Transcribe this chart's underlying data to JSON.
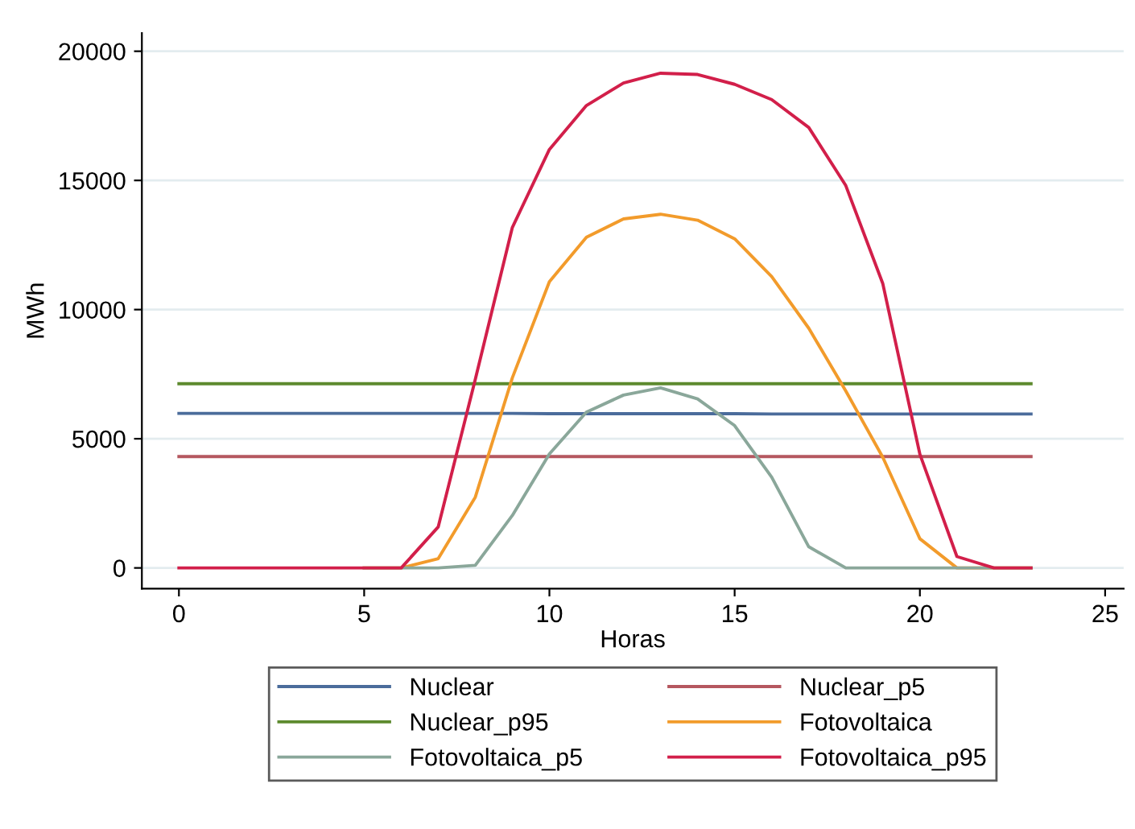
{
  "chart_data": {
    "type": "line",
    "xlabel": "Horas",
    "ylabel": "MWh",
    "x": [
      0,
      1,
      2,
      3,
      4,
      5,
      6,
      7,
      8,
      9,
      10,
      11,
      12,
      13,
      14,
      15,
      16,
      17,
      18,
      19,
      20,
      21,
      22,
      23
    ],
    "series": [
      {
        "name": "Nuclear",
        "color": "#4b6c9b",
        "values": [
          5980,
          5980,
          5980,
          5980,
          5980,
          5980,
          5980,
          5980,
          5980,
          5980,
          5970,
          5970,
          5970,
          5970,
          5970,
          5970,
          5960,
          5960,
          5960,
          5960,
          5960,
          5960,
          5960,
          5960
        ]
      },
      {
        "name": "Nuclear_p5",
        "color": "#b5575f",
        "values": [
          4310,
          4310,
          4310,
          4310,
          4310,
          4310,
          4310,
          4310,
          4310,
          4310,
          4310,
          4310,
          4310,
          4310,
          4310,
          4310,
          4310,
          4310,
          4310,
          4310,
          4310,
          4310,
          4310,
          4310
        ]
      },
      {
        "name": "Nuclear_p95",
        "color": "#5d8a2e",
        "values": [
          7130,
          7130,
          7130,
          7130,
          7130,
          7130,
          7130,
          7130,
          7130,
          7130,
          7130,
          7130,
          7130,
          7130,
          7130,
          7130,
          7130,
          7130,
          7130,
          7130,
          7130,
          7130,
          7130,
          7130
        ]
      },
      {
        "name": "Fotovoltaica",
        "color": "#f29b2b",
        "values": [
          null,
          null,
          null,
          null,
          null,
          0,
          0,
          360,
          2740,
          7360,
          11080,
          12800,
          13510,
          13690,
          13460,
          12740,
          11280,
          9280,
          6850,
          4280,
          1130,
          0,
          0,
          0
        ]
      },
      {
        "name": "Fotovoltaica_p5",
        "color": "#8aa79a",
        "values": [
          null,
          null,
          null,
          null,
          null,
          0,
          0,
          0,
          100,
          2030,
          4410,
          6030,
          6690,
          6970,
          6540,
          5510,
          3510,
          820,
          0,
          0,
          0,
          0,
          0,
          0
        ]
      },
      {
        "name": "Fotovoltaica_p95",
        "color": "#d21f4a",
        "values": [
          0,
          0,
          0,
          0,
          0,
          0,
          0,
          1590,
          7300,
          13180,
          16200,
          17900,
          18770,
          19150,
          19100,
          18720,
          18130,
          17050,
          14800,
          11000,
          4400,
          440,
          0,
          0
        ]
      }
    ],
    "xlim": [
      -1,
      25.5
    ],
    "xticks": [
      0,
      5,
      10,
      15,
      20,
      25
    ],
    "ylim": [
      -800,
      20700
    ],
    "yticks": [
      0,
      5000,
      10000,
      15000,
      20000
    ],
    "grid": "y",
    "legend": "bottom"
  }
}
